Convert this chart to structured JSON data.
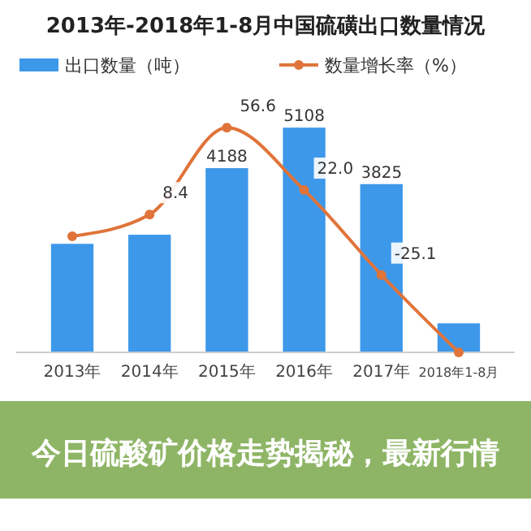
{
  "chart_data": {
    "type": "bar",
    "title": "2013年-2018年1-8月中国硫磺出口数量情况",
    "categories": [
      "2013年",
      "2014年",
      "2015年",
      "2016年",
      "2017年",
      "2018年1-8月"
    ],
    "series": [
      {
        "name": "出口数量（吨）",
        "color": "#3d98ea",
        "values": [
          2467,
          2674,
          4188,
          5108,
          3825,
          660
        ],
        "value_labels": [
          null,
          null,
          "4188",
          "5108",
          "3825",
          null
        ]
      },
      {
        "name": "数量增长率（%）",
        "type": "line",
        "axis": "y2",
        "color": "#e0743a",
        "values": [
          -3.6,
          8.4,
          56.6,
          22.0,
          -25.1,
          -68
        ],
        "value_labels": [
          null,
          "8.4",
          "56.6",
          "22.0",
          "-25.1",
          null
        ]
      }
    ],
    "tick_labels": "x",
    "legend": "top",
    "marker": "circle",
    "annotations": [
      "今日硫酸矿价格走势揭秘，最新行情"
    ]
  }
}
